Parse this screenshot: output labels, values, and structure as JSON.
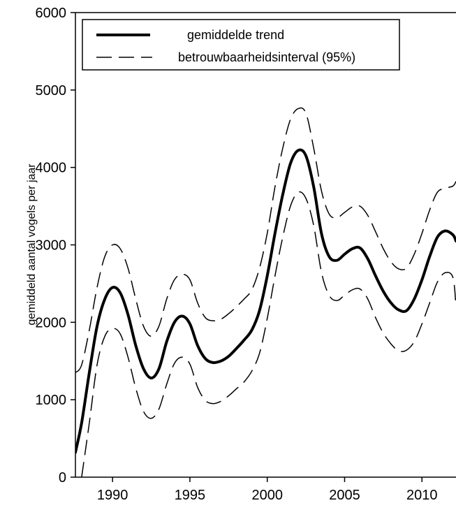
{
  "chart_data": {
    "type": "line",
    "title": "",
    "xlabel": "",
    "ylabel": "gemiddeld aantal vogels per jaar",
    "xlim": [
      1987.6,
      2012.2
    ],
    "ylim": [
      0,
      6000
    ],
    "x_ticks": [
      1990,
      1995,
      2000,
      2005,
      2010
    ],
    "x_tick_labels": [
      "1990",
      "1995",
      "2000",
      "2005",
      "2010"
    ],
    "y_ticks": [
      0,
      1000,
      2000,
      3000,
      4000,
      5000,
      6000
    ],
    "y_tick_labels": [
      "0",
      "1000",
      "2000",
      "3000",
      "4000",
      "5000",
      "6000"
    ],
    "grid": false,
    "legend_position": "top-left",
    "series": [
      {
        "name": "gemiddelde trend",
        "style": "solid-thick",
        "color": "#000000",
        "x": [
          1987.6,
          1988.0,
          1988.5,
          1989.0,
          1989.5,
          1990.0,
          1990.5,
          1991.0,
          1991.5,
          1992.0,
          1992.5,
          1993.0,
          1993.5,
          1994.0,
          1994.5,
          1995.0,
          1995.5,
          1996.0,
          1996.5,
          1997.0,
          1997.5,
          1998.0,
          1998.5,
          1999.0,
          1999.5,
          2000.0,
          2000.5,
          2001.0,
          2001.5,
          2002.0,
          2002.5,
          2003.0,
          2003.5,
          2004.0,
          2004.5,
          2005.0,
          2005.5,
          2006.0,
          2006.5,
          2007.0,
          2007.5,
          2008.0,
          2008.5,
          2009.0,
          2009.5,
          2010.0,
          2010.5,
          2011.0,
          2011.5,
          2012.0,
          2012.2
        ],
        "values": [
          320,
          700,
          1350,
          1950,
          2300,
          2450,
          2380,
          2100,
          1700,
          1400,
          1280,
          1400,
          1750,
          2000,
          2080,
          1980,
          1700,
          1530,
          1480,
          1500,
          1560,
          1660,
          1770,
          1900,
          2150,
          2600,
          3150,
          3650,
          4050,
          4220,
          4150,
          3750,
          3150,
          2850,
          2800,
          2880,
          2950,
          2960,
          2820,
          2600,
          2400,
          2250,
          2160,
          2150,
          2300,
          2550,
          2850,
          3100,
          3180,
          3130,
          3050
        ]
      },
      {
        "name": "betrouwbaarheidsinterval (95%)",
        "style": "dashed",
        "color": "#000000",
        "x": [
          1987.6,
          1988.0,
          1988.5,
          1989.0,
          1989.5,
          1990.0,
          1990.5,
          1991.0,
          1991.5,
          1992.0,
          1992.5,
          1993.0,
          1993.5,
          1994.0,
          1994.5,
          1995.0,
          1995.5,
          1996.0,
          1996.5,
          1997.0,
          1997.5,
          1998.0,
          1998.5,
          1999.0,
          1999.5,
          2000.0,
          2000.5,
          2001.0,
          2001.5,
          2002.0,
          2002.5,
          2003.0,
          2003.5,
          2004.0,
          2004.5,
          2005.0,
          2005.5,
          2006.0,
          2006.5,
          2007.0,
          2007.5,
          2008.0,
          2008.5,
          2009.0,
          2009.5,
          2010.0,
          2010.5,
          2011.0,
          2011.5,
          2012.0,
          2012.2
        ],
        "values": [
          1350,
          1450,
          1900,
          2450,
          2850,
          3000,
          2950,
          2700,
          2300,
          1950,
          1820,
          1950,
          2300,
          2550,
          2620,
          2550,
          2250,
          2060,
          2020,
          2040,
          2110,
          2200,
          2300,
          2420,
          2700,
          3150,
          3750,
          4250,
          4620,
          4760,
          4700,
          4250,
          3700,
          3400,
          3350,
          3420,
          3490,
          3500,
          3380,
          3170,
          2950,
          2780,
          2690,
          2700,
          2880,
          3150,
          3450,
          3680,
          3730,
          3760,
          3820
        ]
      },
      {
        "name": "",
        "style": "dashed",
        "color": "#000000",
        "x": [
          1988.0,
          1988.5,
          1989.0,
          1989.5,
          1990.0,
          1990.5,
          1991.0,
          1991.5,
          1992.0,
          1992.5,
          1993.0,
          1993.5,
          1994.0,
          1994.5,
          1995.0,
          1995.5,
          1996.0,
          1996.5,
          1997.0,
          1997.5,
          1998.0,
          1998.5,
          1999.0,
          1999.5,
          2000.0,
          2000.5,
          2001.0,
          2001.5,
          2002.0,
          2002.5,
          2003.0,
          2003.5,
          2004.0,
          2004.5,
          2005.0,
          2005.5,
          2006.0,
          2006.5,
          2007.0,
          2007.5,
          2008.0,
          2008.5,
          2009.0,
          2009.5,
          2010.0,
          2010.5,
          2011.0,
          2011.5,
          2012.0,
          2012.2
        ],
        "values": [
          0,
          700,
          1450,
          1820,
          1920,
          1850,
          1550,
          1150,
          850,
          760,
          880,
          1200,
          1470,
          1550,
          1460,
          1160,
          990,
          950,
          980,
          1050,
          1140,
          1230,
          1370,
          1600,
          2050,
          2600,
          3100,
          3500,
          3680,
          3600,
          3250,
          2650,
          2350,
          2280,
          2350,
          2420,
          2430,
          2300,
          2060,
          1860,
          1720,
          1630,
          1640,
          1750,
          1980,
          2250,
          2520,
          2640,
          2580,
          2200
        ]
      }
    ],
    "legend": [
      {
        "label": "gemiddelde trend",
        "style": "solid-thick"
      },
      {
        "label": "betrouwbaarheidsinterval (95%)",
        "style": "dashed"
      }
    ]
  }
}
